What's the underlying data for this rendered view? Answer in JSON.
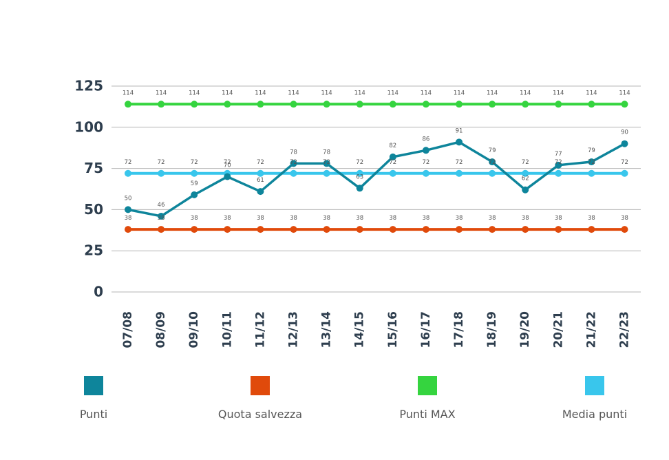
{
  "chart_data": {
    "type": "line",
    "title": "",
    "xlabel": "",
    "ylabel": "",
    "ylim": [
      0,
      125
    ],
    "yticks": [
      "0",
      "25",
      "50",
      "75",
      "100",
      "125"
    ],
    "grid": true,
    "legend_position": "bottom",
    "categories": [
      "07/08",
      "08/09",
      "09/10",
      "10/11",
      "11/12",
      "12/13",
      "13/14",
      "14/15",
      "15/16",
      "16/17",
      "17/18",
      "18/19",
      "19/20",
      "20/21",
      "21/22",
      "22/23"
    ],
    "series": [
      {
        "name": "Punti",
        "color": "#0e859b",
        "values": [
          50,
          46,
          59,
          70,
          61,
          78,
          78,
          63,
          82,
          86,
          91,
          79,
          62,
          77,
          79,
          90
        ]
      },
      {
        "name": "Quota salvezza",
        "color": "#e04a0b",
        "values": [
          38,
          38,
          38,
          38,
          38,
          38,
          38,
          38,
          38,
          38,
          38,
          38,
          38,
          38,
          38,
          38
        ]
      },
      {
        "name": "Punti MAX",
        "color": "#35d43f",
        "values": [
          114,
          114,
          114,
          114,
          114,
          114,
          114,
          114,
          114,
          114,
          114,
          114,
          114,
          114,
          114,
          114
        ]
      },
      {
        "name": "Media punti",
        "color": "#39c6ec",
        "values": [
          72,
          72,
          72,
          72,
          72,
          72,
          72,
          72,
          72,
          72,
          72,
          72,
          72,
          72,
          72,
          72
        ]
      }
    ]
  }
}
